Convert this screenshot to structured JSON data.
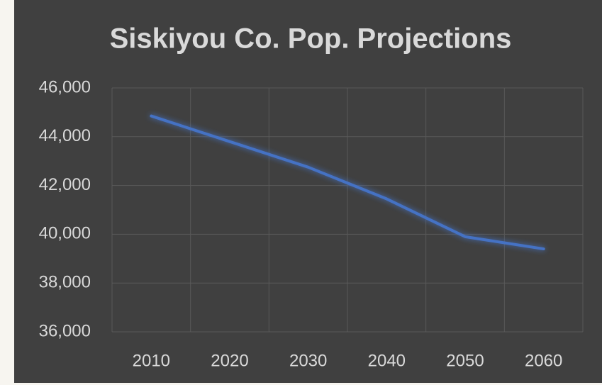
{
  "chart_data": {
    "type": "line",
    "title": "Siskiyou Co. Pop. Projections",
    "categories": [
      "2010",
      "2020",
      "2030",
      "2040",
      "2050",
      "2060"
    ],
    "series": [
      {
        "name": "Population",
        "color": "#4472c4",
        "values": [
          44850,
          43800,
          42750,
          41450,
          39900,
          39400
        ]
      }
    ],
    "ylim": [
      36000,
      46000
    ],
    "yticks": [
      {
        "value": 36000,
        "label": "36,000"
      },
      {
        "value": 38000,
        "label": "38,000"
      },
      {
        "value": 40000,
        "label": "40,000"
      },
      {
        "value": 42000,
        "label": "42,000"
      },
      {
        "value": 44000,
        "label": "44,000"
      },
      {
        "value": 46000,
        "label": "46,000"
      }
    ],
    "grid": true
  }
}
